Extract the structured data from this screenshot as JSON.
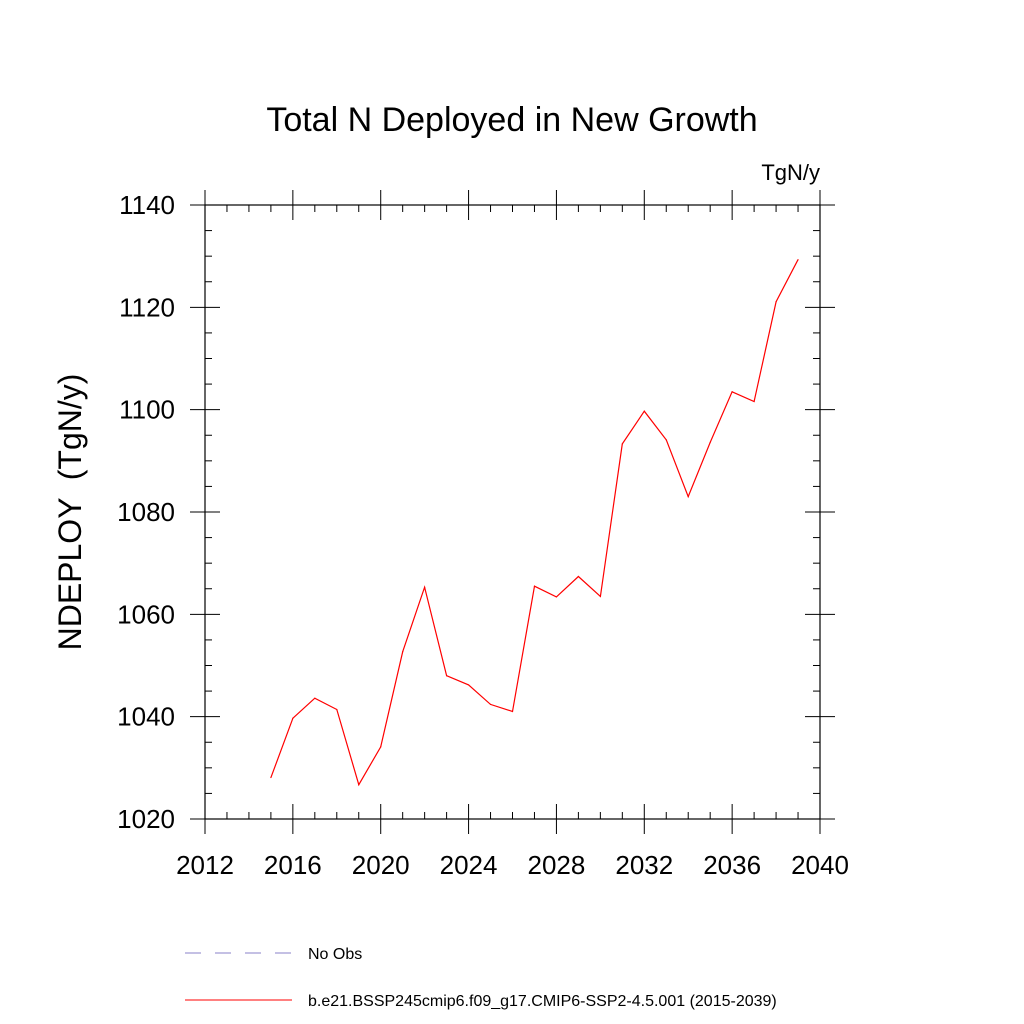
{
  "chart_data": {
    "type": "line",
    "title": "Total N Deployed in New Growth",
    "units_label": "TgN/y",
    "ylabel": "NDEPLOY  (TgN/y)",
    "xlabel": "",
    "xlim": [
      2012,
      2040
    ],
    "ylim": [
      1020,
      1140
    ],
    "x_ticks": [
      2012,
      2016,
      2020,
      2024,
      2028,
      2032,
      2036,
      2040
    ],
    "y_ticks": [
      1020,
      1040,
      1060,
      1080,
      1100,
      1120,
      1140
    ],
    "grid": false,
    "legend_position": "bottom",
    "series": [
      {
        "name": "b.e21.BSSP245cmip6.f09_g17.CMIP6-SSP2-4.5.001 (2015-2039)",
        "color": "#ff0000",
        "style": "solid",
        "x": [
          2015,
          2016,
          2017,
          2018,
          2019,
          2020,
          2021,
          2022,
          2023,
          2024,
          2025,
          2026,
          2027,
          2028,
          2029,
          2030,
          2031,
          2032,
          2033,
          2034,
          2035,
          2036,
          2037,
          2038,
          2039
        ],
        "y": [
          1028.1,
          1039.7,
          1043.6,
          1041.4,
          1026.7,
          1034.1,
          1052.7,
          1065.3,
          1048.0,
          1046.2,
          1042.4,
          1041.0,
          1065.5,
          1063.4,
          1067.4,
          1063.5,
          1093.3,
          1099.7,
          1094.1,
          1083.0,
          1093.6,
          1103.5,
          1101.6,
          1121.1,
          1129.3
        ]
      },
      {
        "name": "No Obs",
        "color": "#8a80c8",
        "style": "dashed",
        "x": [],
        "y": []
      }
    ]
  }
}
